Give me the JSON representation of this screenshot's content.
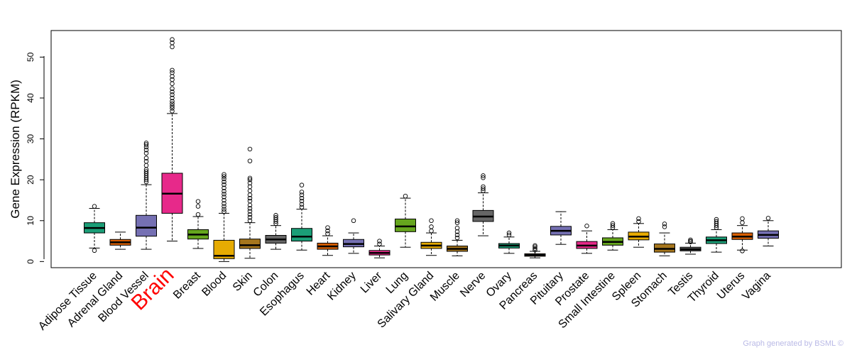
{
  "chart_data": {
    "type": "boxplot",
    "title": "",
    "xlabel": "",
    "ylabel": "Gene Expression (RPKM)",
    "ylim": [
      -1.5,
      56.5
    ],
    "yticks": [
      0,
      10,
      20,
      30,
      40,
      50
    ],
    "highlight": "Brain",
    "highlight_color": "#ff0000",
    "categories": [
      {
        "name": "Adipose Tissue",
        "color": "#1b9e77",
        "q1": 7.0,
        "median": 8.2,
        "q3": 9.5,
        "wlo": 3.3,
        "whi": 13.0,
        "outliers": [
          2.7,
          13.5
        ]
      },
      {
        "name": "Adrenal Gland",
        "color": "#d95f02",
        "q1": 4.0,
        "median": 4.7,
        "q3": 5.4,
        "wlo": 3.0,
        "whi": 7.2,
        "outliers": []
      },
      {
        "name": "Blood Vessel",
        "color": "#7570b3",
        "q1": 6.2,
        "median": 8.3,
        "q3": 11.3,
        "wlo": 3.0,
        "whi": 18.8,
        "outliers": [
          19.5,
          20.0,
          20.5,
          21.0,
          21.5,
          22.0,
          22.5,
          23.5,
          24.5,
          25.3,
          26.5,
          27.3,
          28.0,
          28.6,
          29.0
        ]
      },
      {
        "name": "Brain",
        "color": "#e7298a",
        "q1": 11.8,
        "median": 16.6,
        "q3": 21.6,
        "wlo": 5.0,
        "whi": 36.2,
        "outliers": [
          36.8,
          37.5,
          38.0,
          38.6,
          39.2,
          40.0,
          40.8,
          41.5,
          42.3,
          43.5,
          44.5,
          45.3,
          46.2,
          46.8,
          52.5,
          53.5,
          54.3
        ]
      },
      {
        "name": "Breast",
        "color": "#66a61e",
        "q1": 5.5,
        "median": 6.6,
        "q3": 7.8,
        "wlo": 3.2,
        "whi": 11.0,
        "outliers": [
          11.5,
          13.5,
          14.7
        ]
      },
      {
        "name": "Blood",
        "color": "#e6ab02",
        "q1": 0.7,
        "median": 1.4,
        "q3": 5.2,
        "wlo": 0.0,
        "whi": 11.8,
        "outliers": [
          12.2,
          12.8,
          13.5,
          14.2,
          15.0,
          15.8,
          16.5,
          17.2,
          18.0,
          18.8,
          19.5,
          20.2,
          20.8,
          21.3
        ]
      },
      {
        "name": "Skin",
        "color": "#a6761d",
        "q1": 3.2,
        "median": 4.0,
        "q3": 5.5,
        "wlo": 0.8,
        "whi": 9.5,
        "outliers": [
          10.0,
          10.8,
          11.5,
          12.3,
          13.0,
          13.8,
          14.8,
          15.5,
          16.3,
          17.3,
          18.3,
          19.2,
          20.0,
          20.4,
          24.6,
          27.5
        ]
      },
      {
        "name": "Colon",
        "color": "#666666",
        "q1": 4.5,
        "median": 5.4,
        "q3": 6.4,
        "wlo": 3.0,
        "whi": 8.8,
        "outliers": [
          9.3,
          9.8,
          10.3,
          10.8,
          11.3
        ]
      },
      {
        "name": "Esophagus",
        "color": "#1b9e77",
        "q1": 5.0,
        "median": 6.1,
        "q3": 8.1,
        "wlo": 2.8,
        "whi": 12.8,
        "outliers": [
          13.3,
          14.0,
          14.8,
          15.5,
          16.3,
          17.0,
          18.7
        ]
      },
      {
        "name": "Heart",
        "color": "#d95f02",
        "q1": 3.0,
        "median": 3.7,
        "q3": 4.5,
        "wlo": 1.5,
        "whi": 6.3,
        "outliers": [
          6.8,
          7.5,
          8.3
        ]
      },
      {
        "name": "Kidney",
        "color": "#7570b3",
        "q1": 3.6,
        "median": 4.3,
        "q3": 5.4,
        "wlo": 2.0,
        "whi": 7.0,
        "outliers": [
          10.0
        ]
      },
      {
        "name": "Liver",
        "color": "#e7298a",
        "q1": 1.6,
        "median": 2.1,
        "q3": 2.7,
        "wlo": 0.9,
        "whi": 3.8,
        "outliers": [
          4.3,
          5.0
        ]
      },
      {
        "name": "Lung",
        "color": "#66a61e",
        "q1": 7.3,
        "median": 8.6,
        "q3": 10.4,
        "wlo": 3.5,
        "whi": 15.5,
        "outliers": [
          16.0
        ]
      },
      {
        "name": "Salivary Gland",
        "color": "#e6ab02",
        "q1": 3.2,
        "median": 3.9,
        "q3": 4.7,
        "wlo": 1.5,
        "whi": 7.0,
        "outliers": [
          7.5,
          8.5,
          10.0
        ]
      },
      {
        "name": "Muscle",
        "color": "#a6761d",
        "q1": 2.5,
        "median": 3.1,
        "q3": 3.8,
        "wlo": 1.4,
        "whi": 5.2,
        "outliers": [
          5.8,
          6.5,
          7.3,
          8.2,
          9.5,
          10.0
        ]
      },
      {
        "name": "Nerve",
        "color": "#666666",
        "q1": 9.8,
        "median": 11.0,
        "q3": 12.5,
        "wlo": 6.3,
        "whi": 16.8,
        "outliers": [
          17.3,
          17.8,
          18.3,
          20.5,
          21.0
        ]
      },
      {
        "name": "Ovary",
        "color": "#1b9e77",
        "q1": 3.3,
        "median": 3.9,
        "q3": 4.4,
        "wlo": 2.0,
        "whi": 6.0,
        "outliers": [
          6.5,
          7.0
        ]
      },
      {
        "name": "Pancreas",
        "color": "#d95f02",
        "q1": 1.3,
        "median": 1.6,
        "q3": 1.9,
        "wlo": 0.9,
        "whi": 2.5,
        "outliers": [
          2.8,
          3.2,
          3.6,
          3.9
        ]
      },
      {
        "name": "Pituitary",
        "color": "#7570b3",
        "q1": 6.5,
        "median": 7.5,
        "q3": 8.6,
        "wlo": 4.2,
        "whi": 12.2,
        "outliers": []
      },
      {
        "name": "Prostate",
        "color": "#e7298a",
        "q1": 3.2,
        "median": 3.9,
        "q3": 4.9,
        "wlo": 2.0,
        "whi": 7.5,
        "outliers": [
          8.7
        ]
      },
      {
        "name": "Small Intestine",
        "color": "#66a61e",
        "q1": 4.0,
        "median": 4.8,
        "q3": 5.8,
        "wlo": 2.8,
        "whi": 7.8,
        "outliers": [
          8.3,
          8.8,
          9.3
        ]
      },
      {
        "name": "Spleen",
        "color": "#e6ab02",
        "q1": 5.3,
        "median": 6.1,
        "q3": 7.2,
        "wlo": 3.5,
        "whi": 9.3,
        "outliers": [
          9.8,
          10.5
        ]
      },
      {
        "name": "Stomach",
        "color": "#a6761d",
        "q1": 2.3,
        "median": 3.1,
        "q3": 4.3,
        "wlo": 1.4,
        "whi": 7.0,
        "outliers": [
          8.5,
          9.2
        ]
      },
      {
        "name": "Testis",
        "color": "#666666",
        "q1": 2.6,
        "median": 3.0,
        "q3": 3.5,
        "wlo": 1.8,
        "whi": 4.5,
        "outliers": [
          4.8,
          5.0,
          5.3
        ]
      },
      {
        "name": "Thyroid",
        "color": "#1b9e77",
        "q1": 4.4,
        "median": 5.2,
        "q3": 6.0,
        "wlo": 2.3,
        "whi": 7.8,
        "outliers": [
          8.3,
          8.8,
          9.3,
          9.8,
          10.3
        ]
      },
      {
        "name": "Uterus",
        "color": "#d95f02",
        "q1": 5.4,
        "median": 6.1,
        "q3": 7.0,
        "wlo": 2.8,
        "whi": 8.8,
        "outliers": [
          2.6,
          9.5,
          10.5
        ]
      },
      {
        "name": "Vagina",
        "color": "#7570b3",
        "q1": 5.7,
        "median": 6.5,
        "q3": 7.5,
        "wlo": 3.8,
        "whi": 10.0,
        "outliers": [
          10.6
        ]
      }
    ]
  },
  "footer": "Graph generated by BSML ©"
}
